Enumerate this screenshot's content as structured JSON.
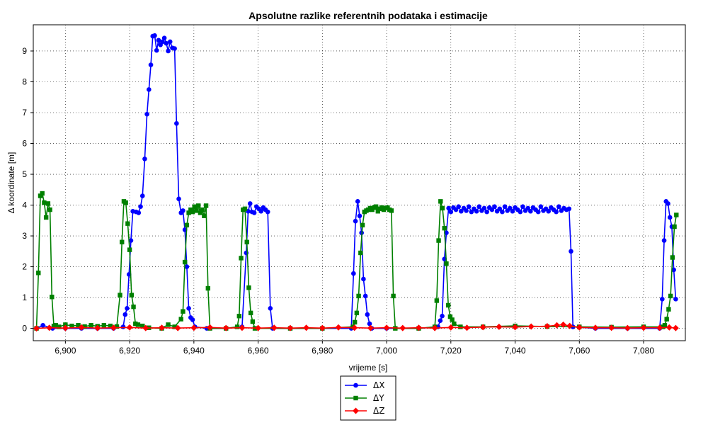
{
  "chart_data": {
    "type": "line",
    "title": "Apsolutne razlike referentnih podataka i estimacije",
    "xlabel": "vrijeme [s]",
    "ylabel": "Δ koordinate [m]",
    "xlim": [
      6890,
      7093
    ],
    "ylim": [
      -0.4,
      9.85
    ],
    "xticks": [
      6900,
      6920,
      6940,
      6960,
      6980,
      7000,
      7020,
      7040,
      7060,
      7080
    ],
    "xtick_labels": [
      "6,900",
      "6,920",
      "6,940",
      "6,960",
      "6,980",
      "7,000",
      "7,020",
      "7,040",
      "7,060",
      "7,080"
    ],
    "yticks": [
      0,
      1,
      2,
      3,
      4,
      5,
      6,
      7,
      8,
      9
    ],
    "ytick_labels": [
      "0",
      "1",
      "2",
      "3",
      "4",
      "5",
      "6",
      "7",
      "8",
      "9"
    ],
    "grid": true,
    "legend_position": "bottom-center",
    "series": [
      {
        "name": "ΔX",
        "color": "#0000ff",
        "marker": "circle",
        "points": [
          [
            6891,
            0
          ],
          [
            6893,
            0.1
          ],
          [
            6896,
            0
          ],
          [
            6900,
            0
          ],
          [
            6905,
            0
          ],
          [
            6910,
            0
          ],
          [
            6915,
            0
          ],
          [
            6918,
            0.05
          ],
          [
            6918.6,
            0.45
          ],
          [
            6919.2,
            0.65
          ],
          [
            6919.8,
            1.75
          ],
          [
            6920.4,
            2.85
          ],
          [
            6921,
            3.8
          ],
          [
            6922,
            3.78
          ],
          [
            6922.8,
            3.75
          ],
          [
            6923.4,
            3.95
          ],
          [
            6924,
            4.3
          ],
          [
            6924.7,
            5.5
          ],
          [
            6925.4,
            6.95
          ],
          [
            6926,
            7.75
          ],
          [
            6926.6,
            8.55
          ],
          [
            6927.2,
            9.48
          ],
          [
            6927.8,
            9.5
          ],
          [
            6928.4,
            9.02
          ],
          [
            6929,
            9.35
          ],
          [
            6929.6,
            9.2
          ],
          [
            6930.2,
            9.3
          ],
          [
            6930.8,
            9.42
          ],
          [
            6931.4,
            9.25
          ],
          [
            6932,
            9.0
          ],
          [
            6932.6,
            9.3
          ],
          [
            6933.3,
            9.1
          ],
          [
            6934,
            9.08
          ],
          [
            6934.6,
            6.65
          ],
          [
            6935.3,
            4.2
          ],
          [
            6936,
            3.75
          ],
          [
            6936.6,
            3.82
          ],
          [
            6937.2,
            3.2
          ],
          [
            6937.8,
            2.0
          ],
          [
            6938.4,
            0.65
          ],
          [
            6939,
            0.35
          ],
          [
            6939.6,
            0.28
          ],
          [
            6940.3,
            0.05
          ],
          [
            6944,
            0
          ],
          [
            6950,
            0
          ],
          [
            6955,
            0.05
          ],
          [
            6956.3,
            2.45
          ],
          [
            6956.9,
            3.8
          ],
          [
            6957.5,
            4.05
          ],
          [
            6958.1,
            3.78
          ],
          [
            6958.8,
            3.75
          ],
          [
            6959.5,
            3.95
          ],
          [
            6960.2,
            3.88
          ],
          [
            6960.9,
            3.8
          ],
          [
            6961.6,
            3.92
          ],
          [
            6962.3,
            3.85
          ],
          [
            6963,
            3.78
          ],
          [
            6963.8,
            0.65
          ],
          [
            6964.5,
            0
          ],
          [
            6970,
            0
          ],
          [
            6980,
            0
          ],
          [
            6989,
            0
          ],
          [
            6989.7,
            1.78
          ],
          [
            6990.3,
            3.48
          ],
          [
            6991,
            4.12
          ],
          [
            6991.6,
            3.65
          ],
          [
            6992.2,
            3.1
          ],
          [
            6992.8,
            1.6
          ],
          [
            6993.4,
            1.05
          ],
          [
            6994,
            0.45
          ],
          [
            6994.7,
            0.15
          ],
          [
            6995.4,
            0
          ],
          [
            7000,
            0
          ],
          [
            7010,
            0
          ],
          [
            7016,
            0.05
          ],
          [
            7016.7,
            0.25
          ],
          [
            7017.3,
            0.4
          ],
          [
            7018,
            2.25
          ],
          [
            7018.6,
            3.1
          ],
          [
            7019.3,
            3.9
          ],
          [
            7020,
            3.78
          ],
          [
            7020.8,
            3.92
          ],
          [
            7021.6,
            3.85
          ],
          [
            7022.4,
            3.95
          ],
          [
            7023.2,
            3.8
          ],
          [
            7024,
            3.9
          ],
          [
            7024.8,
            3.82
          ],
          [
            7025.6,
            3.95
          ],
          [
            7026.4,
            3.78
          ],
          [
            7027.2,
            3.88
          ],
          [
            7028,
            3.8
          ],
          [
            7028.8,
            3.95
          ],
          [
            7029.6,
            3.82
          ],
          [
            7030.4,
            3.9
          ],
          [
            7031.2,
            3.78
          ],
          [
            7032,
            3.92
          ],
          [
            7032.8,
            3.85
          ],
          [
            7033.6,
            3.95
          ],
          [
            7034.4,
            3.8
          ],
          [
            7035.2,
            3.88
          ],
          [
            7036,
            3.78
          ],
          [
            7036.8,
            3.95
          ],
          [
            7037.6,
            3.82
          ],
          [
            7038.4,
            3.9
          ],
          [
            7039.2,
            3.8
          ],
          [
            7040,
            3.92
          ],
          [
            7040.8,
            3.85
          ],
          [
            7041.6,
            3.78
          ],
          [
            7042.4,
            3.95
          ],
          [
            7043.2,
            3.82
          ],
          [
            7044,
            3.9
          ],
          [
            7044.8,
            3.8
          ],
          [
            7045.6,
            3.92
          ],
          [
            7046.4,
            3.85
          ],
          [
            7047.2,
            3.78
          ],
          [
            7048,
            3.95
          ],
          [
            7048.8,
            3.82
          ],
          [
            7049.6,
            3.88
          ],
          [
            7050.4,
            3.8
          ],
          [
            7051.2,
            3.92
          ],
          [
            7052,
            3.85
          ],
          [
            7052.8,
            3.78
          ],
          [
            7053.6,
            3.95
          ],
          [
            7054.4,
            3.82
          ],
          [
            7055.2,
            3.9
          ],
          [
            7056,
            3.85
          ],
          [
            7056.8,
            3.88
          ],
          [
            7057.4,
            2.5
          ],
          [
            7058,
            0.05
          ],
          [
            7065,
            0
          ],
          [
            7075,
            0
          ],
          [
            7085,
            0
          ],
          [
            7085.8,
            0.95
          ],
          [
            7086.4,
            2.85
          ],
          [
            7087,
            4.12
          ],
          [
            7087.6,
            4.05
          ],
          [
            7088.2,
            3.6
          ],
          [
            7088.8,
            3.3
          ],
          [
            7089.4,
            1.9
          ],
          [
            7090,
            0.95
          ]
        ]
      },
      {
        "name": "ΔY",
        "color": "#008000",
        "marker": "square",
        "points": [
          [
            6891,
            0
          ],
          [
            6891.6,
            1.8
          ],
          [
            6892.2,
            4.3
          ],
          [
            6892.8,
            4.38
          ],
          [
            6893.4,
            4.08
          ],
          [
            6894,
            3.6
          ],
          [
            6894.6,
            4.05
          ],
          [
            6895.2,
            3.85
          ],
          [
            6895.8,
            1.02
          ],
          [
            6896.4,
            0.08
          ],
          [
            6897,
            0.1
          ],
          [
            6898,
            0.05
          ],
          [
            6900,
            0.12
          ],
          [
            6902,
            0.08
          ],
          [
            6904,
            0.1
          ],
          [
            6906,
            0.06
          ],
          [
            6908,
            0.1
          ],
          [
            6910,
            0.07
          ],
          [
            6912,
            0.1
          ],
          [
            6914,
            0.08
          ],
          [
            6916,
            0.06
          ],
          [
            6917,
            1.08
          ],
          [
            6917.6,
            2.8
          ],
          [
            6918.2,
            4.12
          ],
          [
            6918.8,
            4.08
          ],
          [
            6919.4,
            3.4
          ],
          [
            6920,
            2.55
          ],
          [
            6920.6,
            1.08
          ],
          [
            6921.2,
            0.7
          ],
          [
            6921.8,
            0.15
          ],
          [
            6922.6,
            0.12
          ],
          [
            6924,
            0.08
          ],
          [
            6926,
            0.02
          ],
          [
            6930,
            0
          ],
          [
            6932,
            0.12
          ],
          [
            6934,
            0.05
          ],
          [
            6936,
            0.3
          ],
          [
            6936.6,
            0.55
          ],
          [
            6937.2,
            2.15
          ],
          [
            6937.8,
            3.35
          ],
          [
            6938.4,
            3.75
          ],
          [
            6939,
            3.85
          ],
          [
            6939.6,
            3.78
          ],
          [
            6940.2,
            3.95
          ],
          [
            6940.8,
            3.82
          ],
          [
            6941.4,
            3.98
          ],
          [
            6942,
            3.75
          ],
          [
            6942.6,
            3.85
          ],
          [
            6943.2,
            3.65
          ],
          [
            6943.8,
            3.98
          ],
          [
            6944.4,
            1.3
          ],
          [
            6945,
            0
          ],
          [
            6950,
            0
          ],
          [
            6953.5,
            0.05
          ],
          [
            6954.1,
            0.4
          ],
          [
            6954.7,
            2.28
          ],
          [
            6955.3,
            3.85
          ],
          [
            6955.9,
            3.88
          ],
          [
            6956.5,
            2.8
          ],
          [
            6957.1,
            1.32
          ],
          [
            6957.7,
            0.5
          ],
          [
            6958.3,
            0.22
          ],
          [
            6959,
            0
          ],
          [
            6970,
            0
          ],
          [
            6980,
            0
          ],
          [
            6989.5,
            0.05
          ],
          [
            6990.1,
            0.2
          ],
          [
            6990.7,
            0.5
          ],
          [
            6991.3,
            1.05
          ],
          [
            6991.9,
            2.45
          ],
          [
            6992.5,
            3.35
          ],
          [
            6993.1,
            3.78
          ],
          [
            6993.7,
            3.82
          ],
          [
            6994.3,
            3.85
          ],
          [
            6994.9,
            3.9
          ],
          [
            6995.5,
            3.85
          ],
          [
            6996.1,
            3.92
          ],
          [
            6996.7,
            3.95
          ],
          [
            6997.3,
            3.8
          ],
          [
            6997.9,
            3.88
          ],
          [
            6998.5,
            3.92
          ],
          [
            6999.1,
            3.85
          ],
          [
            6999.7,
            3.9
          ],
          [
            7000.3,
            3.92
          ],
          [
            7000.9,
            3.85
          ],
          [
            7001.5,
            3.82
          ],
          [
            7002.1,
            1.05
          ],
          [
            7002.7,
            0
          ],
          [
            7010,
            0
          ],
          [
            7015,
            0.05
          ],
          [
            7015.6,
            0.9
          ],
          [
            7016.2,
            2.85
          ],
          [
            7016.8,
            4.12
          ],
          [
            7017.4,
            3.9
          ],
          [
            7018,
            3.25
          ],
          [
            7018.6,
            2.1
          ],
          [
            7019.2,
            0.75
          ],
          [
            7019.8,
            0.38
          ],
          [
            7020.4,
            0.28
          ],
          [
            7021,
            0.15
          ],
          [
            7023,
            0.05
          ],
          [
            7030,
            0.05
          ],
          [
            7040,
            0.08
          ],
          [
            7050,
            0.06
          ],
          [
            7060,
            0.05
          ],
          [
            7070,
            0.04
          ],
          [
            7080,
            0.05
          ],
          [
            7086,
            0.05
          ],
          [
            7086.6,
            0.1
          ],
          [
            7087.2,
            0.3
          ],
          [
            7087.8,
            0.62
          ],
          [
            7088.4,
            1.05
          ],
          [
            7089,
            2.3
          ],
          [
            7089.6,
            3.3
          ],
          [
            7090.2,
            3.68
          ]
        ]
      },
      {
        "name": "ΔZ",
        "color": "#ff0000",
        "marker": "diamond",
        "points": [
          [
            6891,
            0
          ],
          [
            6895,
            0.02
          ],
          [
            6900,
            0.01
          ],
          [
            6905,
            0.03
          ],
          [
            6910,
            0.01
          ],
          [
            6915,
            0.02
          ],
          [
            6920,
            0.03
          ],
          [
            6925,
            0.01
          ],
          [
            6930,
            0.02
          ],
          [
            6935,
            0.01
          ],
          [
            6940,
            0.02
          ],
          [
            6945,
            0.03
          ],
          [
            6950,
            0.01
          ],
          [
            6955,
            0.02
          ],
          [
            6960,
            0.01
          ],
          [
            6965,
            0.02
          ],
          [
            6970,
            0.01
          ],
          [
            6975,
            0.02
          ],
          [
            6980,
            0.01
          ],
          [
            6985,
            0.03
          ],
          [
            6990,
            0.02
          ],
          [
            6995,
            0.01
          ],
          [
            7000,
            0.02
          ],
          [
            7005,
            0.01
          ],
          [
            7010,
            0.02
          ],
          [
            7015,
            0.01
          ],
          [
            7020,
            0.03
          ],
          [
            7025,
            0.02
          ],
          [
            7030,
            0.04
          ],
          [
            7035,
            0.05
          ],
          [
            7040,
            0.04
          ],
          [
            7045,
            0.06
          ],
          [
            7050,
            0.07
          ],
          [
            7053,
            0.1
          ],
          [
            7055,
            0.12
          ],
          [
            7057,
            0.08
          ],
          [
            7060,
            0.03
          ],
          [
            7065,
            0.02
          ],
          [
            7070,
            0.02
          ],
          [
            7075,
            0.01
          ],
          [
            7080,
            0.02
          ],
          [
            7085,
            0.02
          ],
          [
            7088,
            0.03
          ],
          [
            7090,
            0.01
          ]
        ]
      }
    ]
  }
}
